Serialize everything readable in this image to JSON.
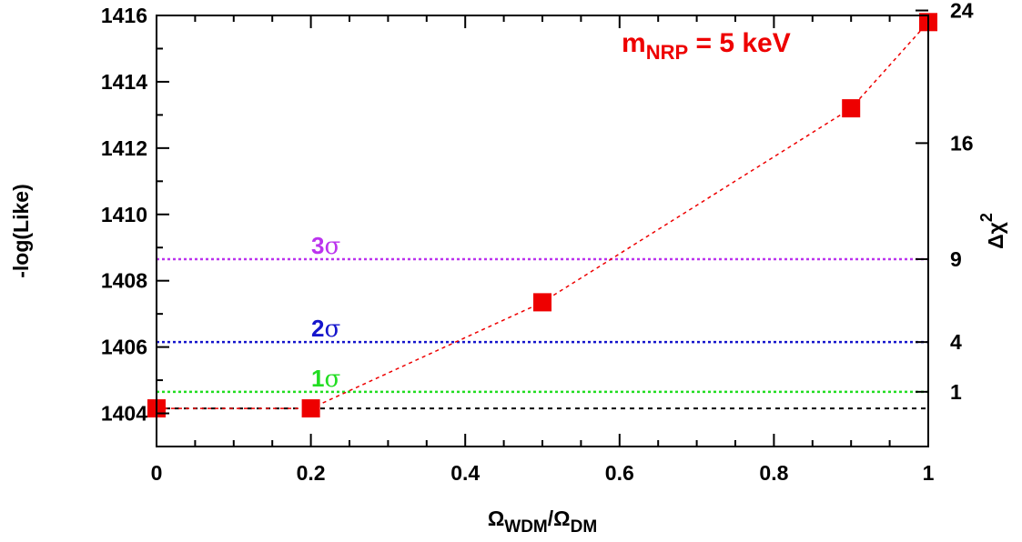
{
  "chart_data": {
    "type": "scatter",
    "title": "",
    "annotation": {
      "main": "m",
      "sub": "NRP",
      "rest": " = 5 keV",
      "color": "#ee0000"
    },
    "xlabel": {
      "num": "Ω",
      "num_sub": "WDM",
      "sep": "/",
      "den": "Ω",
      "den_sub": "DM"
    },
    "ylabel": "-log(Like)",
    "y2label": {
      "base": "Δχ",
      "sup": "2"
    },
    "xlim": [
      0,
      1
    ],
    "ylim": [
      1403,
      1416
    ],
    "x_ticks": [
      "0",
      "0.2",
      "0.4",
      "0.6",
      "0.8",
      "1"
    ],
    "y_ticks": [
      "1404",
      "1406",
      "1408",
      "1410",
      "1412",
      "1414",
      "1416"
    ],
    "y2_ticks": [
      {
        "label": "1",
        "value": 1404.65
      },
      {
        "label": "4",
        "value": 1406.15
      },
      {
        "label": "9",
        "value": 1408.65
      },
      {
        "label": "16",
        "value": 1412.15
      },
      {
        "label": "24",
        "value": 1416.15
      }
    ],
    "baseline": 1404.15,
    "series": [
      {
        "marker": "square",
        "color": "#ee0000",
        "line": "dashed",
        "x": [
          0,
          0.2,
          0.5,
          0.9,
          1.0
        ],
        "y": [
          1404.15,
          1404.15,
          1407.35,
          1413.2,
          1415.8
        ]
      }
    ],
    "sigma_lines": [
      {
        "label": "1",
        "symbol": "σ",
        "value": 1404.65,
        "color": "#22dd22"
      },
      {
        "label": "2",
        "symbol": "σ",
        "value": 1406.15,
        "color": "#1515cc"
      },
      {
        "label": "3",
        "symbol": "σ",
        "value": 1408.65,
        "color": "#bb33ee"
      }
    ]
  }
}
